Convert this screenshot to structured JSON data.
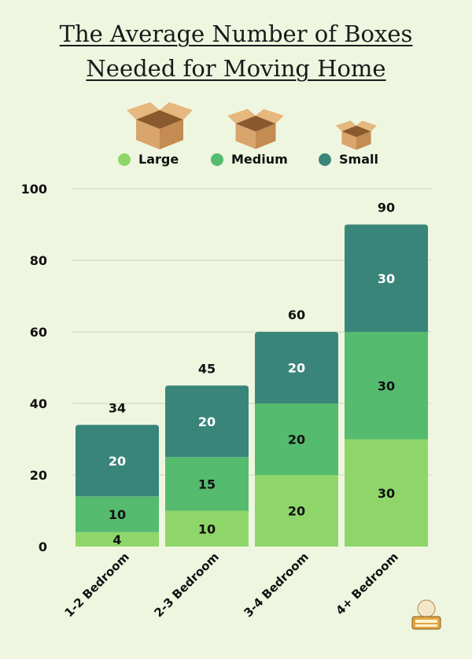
{
  "chart_data": {
    "type": "bar",
    "stacked": true,
    "title": "The Average Number of Boxes Needed for Moving Home",
    "title_lines": [
      "The Average Number of Boxes",
      "Needed for Moving Home"
    ],
    "categories": [
      "1-2 Bedroom",
      "2-3 Bedroom",
      "3-4 Bedroom",
      "4+ Bedroom"
    ],
    "series": [
      {
        "name": "Large",
        "values": [
          4,
          10,
          20,
          30
        ],
        "color": "#8fd66a"
      },
      {
        "name": "Medium",
        "values": [
          10,
          15,
          20,
          30
        ],
        "color": "#55bb6f"
      },
      {
        "name": "Small",
        "values": [
          20,
          20,
          20,
          30
        ],
        "color": "#3a857a"
      }
    ],
    "totals": [
      34,
      45,
      60,
      90
    ],
    "ylim": [
      0,
      100
    ],
    "yticks": [
      0,
      20,
      40,
      60,
      80,
      100
    ],
    "grid": true,
    "legend": "top"
  },
  "colors": {
    "background": "#eef6e0",
    "gridline": "#c9d4bc",
    "text": "#111111",
    "box": "#d4a06a"
  },
  "icons": [
    "large-box-icon",
    "medium-box-icon",
    "small-box-icon",
    "find-my-movers-logo-icon"
  ]
}
